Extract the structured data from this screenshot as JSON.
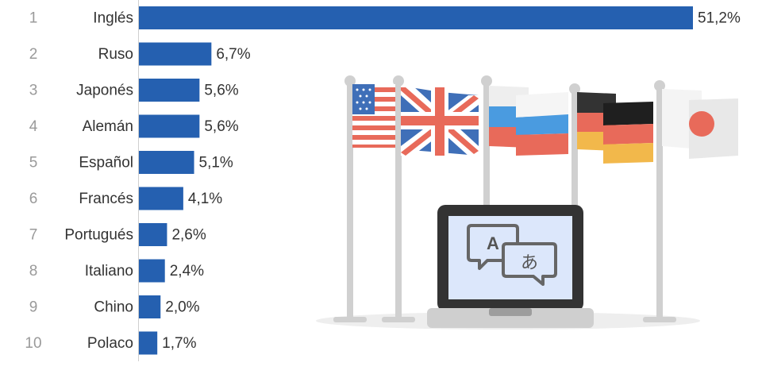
{
  "chart_data": {
    "type": "bar",
    "orientation": "horizontal",
    "ranks": [
      "1",
      "2",
      "3",
      "4",
      "5",
      "6",
      "7",
      "8",
      "9",
      "10"
    ],
    "categories": [
      "Inglés",
      "Ruso",
      "Japonés",
      "Alemán",
      "Español",
      "Francés",
      "Portugués",
      "Italiano",
      "Chino",
      "Polaco"
    ],
    "values": [
      51.2,
      6.7,
      5.6,
      5.6,
      5.1,
      4.1,
      2.6,
      2.4,
      2.0,
      1.7
    ],
    "value_labels": [
      "51,2%",
      "6,7%",
      "5,6%",
      "5,6%",
      "5,1%",
      "4,1%",
      "2,6%",
      "2,4%",
      "2,0%",
      "1,7%"
    ],
    "xlim": [
      0,
      51.2
    ],
    "bar_color": "#2560b0",
    "grid": false,
    "legend": "none"
  },
  "illustration": {
    "flags": [
      "usa-flag",
      "uk-flag",
      "russia-flag",
      "germany-flag",
      "japan-flag"
    ],
    "laptop_icons": [
      "translate-icon"
    ],
    "glyphs": {
      "latin": "A",
      "japanese": "あ"
    }
  }
}
